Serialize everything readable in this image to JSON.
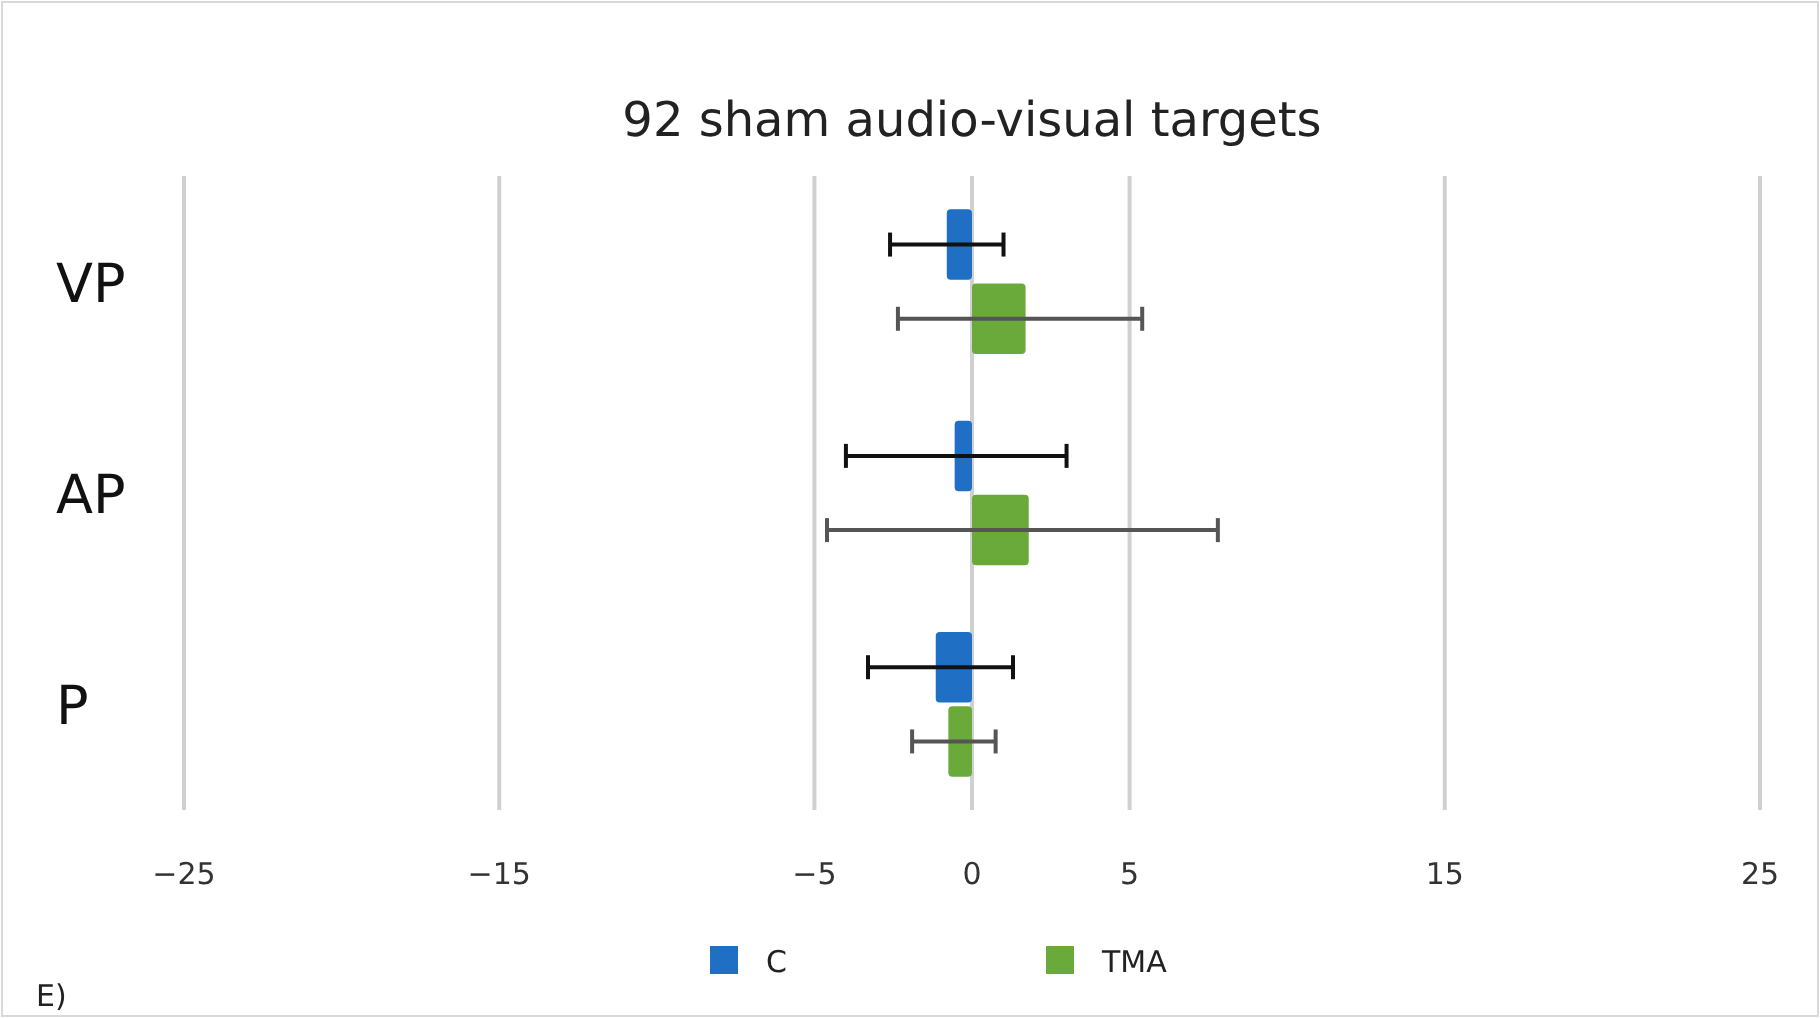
{
  "chart_data": {
    "type": "bar",
    "orientation": "horizontal",
    "title": "92 sham audio-visual targets",
    "categories": [
      "VP",
      "AP",
      "P"
    ],
    "series": [
      {
        "name": "C",
        "color": "#1f6fc5",
        "values": [
          -0.8,
          -0.55,
          -1.15
        ],
        "errors": [
          [
            -2.6,
            1.0
          ],
          [
            -4.0,
            3.0
          ],
          [
            -3.3,
            1.3
          ]
        ]
      },
      {
        "name": "TMA",
        "color": "#6aaa3a",
        "values": [
          1.7,
          1.8,
          -0.75
        ],
        "errors": [
          [
            -2.35,
            5.4
          ],
          [
            -4.6,
            7.8
          ],
          [
            -1.9,
            0.75
          ]
        ]
      }
    ],
    "xlim": [
      -25,
      25
    ],
    "xticks": [
      -25,
      -15,
      -5,
      0,
      5,
      15,
      25
    ],
    "grid": "x",
    "legend": "bottom",
    "annotations": [
      "E)"
    ]
  }
}
